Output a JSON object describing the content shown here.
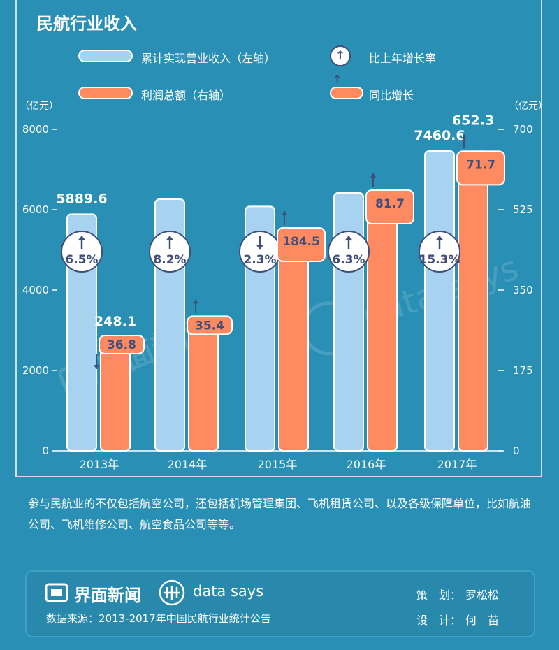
{
  "title": "民航行业收入",
  "legend": {
    "revenue": "累计实现营业收入（左轴）",
    "profit": "利润总额（右轴）",
    "revenue_growth": "比上年增长率",
    "profit_growth": "同比增长"
  },
  "axis_unit_left": "（亿元）",
  "axis_unit_right": "（亿元）",
  "colors": {
    "revenue": "#a8d3f0",
    "profit": "#fe8a62",
    "arrow": "#3f4f7a",
    "background": "#2a8fb4"
  },
  "chart_data": {
    "type": "bar",
    "categories": [
      "2013年",
      "2014年",
      "2015年",
      "2016年",
      "2017年"
    ],
    "series": [
      {
        "name": "累计实现营业收入（左轴）",
        "axis": "left",
        "values": [
          5889.6,
          6260,
          6080,
          6420,
          7460.6
        ],
        "labels": [
          "5889.6",
          "",
          "",
          "",
          "7460.6"
        ]
      },
      {
        "name": "利润总额（右轴）",
        "axis": "right",
        "values": [
          248.1,
          290,
          467,
          555,
          652.3
        ],
        "labels": [
          "248.1",
          "",
          "",
          "",
          "652.3"
        ]
      }
    ],
    "revenue_growth": [
      {
        "text": "6.5%",
        "dir": "up"
      },
      {
        "text": "8.2%",
        "dir": "up"
      },
      {
        "text": "2.3%",
        "dir": "down"
      },
      {
        "text": "6.3%",
        "dir": "up"
      },
      {
        "text": "15.3%",
        "dir": "up"
      }
    ],
    "profit_growth": [
      {
        "text": "36.8",
        "dir": "down"
      },
      {
        "text": "35.4",
        "dir": "up"
      },
      {
        "text": "184.5",
        "dir": "up"
      },
      {
        "text": "81.7",
        "dir": "up"
      },
      {
        "text": "71.7",
        "dir": "up"
      }
    ],
    "ylim_left": [
      0,
      8000
    ],
    "yticks_left": [
      "0",
      "2000",
      "4000",
      "6000",
      "8000"
    ],
    "ylim_right": [
      0,
      700
    ],
    "yticks_right": [
      "0",
      "175",
      "350",
      "525",
      "700"
    ]
  },
  "watermark": {
    "brand": "界面新闻",
    "datasays": "data says"
  },
  "description": "参与民航业的不仅包括航空公司，还包括机场管理集团、飞机租赁公司、以及各级保障单位，比如航油公司、飞机维修公司、航空食品公司等等。",
  "footer": {
    "brand": "界面新闻",
    "datasays": "data says",
    "source": "数据来源：2013-2017年中国民航行业统计公告",
    "planner_label": "策　划：",
    "planner": "罗松松",
    "designer_label": "设　计：",
    "designer": "何　苗"
  }
}
